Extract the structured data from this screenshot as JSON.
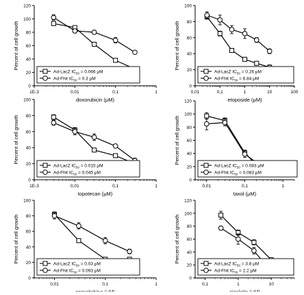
{
  "chart_data": [
    {
      "type": "line",
      "xscale": "log",
      "xlabel": "doxorubicin (μM)",
      "ylabel": "Percent of cell growth",
      "xlim": [
        0.001,
        1
      ],
      "ylim": [
        0,
        120
      ],
      "xticks": [
        0.001,
        0.01,
        0.1,
        1
      ],
      "xtick_labels": [
        "1E-3",
        "0,01",
        "0,1",
        "1"
      ],
      "yticks": [
        0,
        20,
        40,
        60,
        80,
        100,
        120
      ],
      "ytick_labels": [
        "0",
        "20",
        "40",
        "60",
        "80",
        "100",
        "120"
      ],
      "legend_position": "bottom-left",
      "series": [
        {
          "name": "Ad-LacZ IC50 = 0.066 μM",
          "label_main": "Ad-LacZ IC",
          "label_sub": "50",
          "label_rest": " = 0.066 μM",
          "marker": "square",
          "x": [
            0.003,
            0.01,
            0.03,
            0.1,
            0.3
          ],
          "y": [
            93,
            87,
            62,
            38,
            25
          ],
          "err": [
            2,
            2,
            2,
            2,
            2
          ]
        },
        {
          "name": "Ad-Fhit IC50 = 0.3 μM",
          "label_main": "Ad-Fhit  IC",
          "label_sub": "50",
          "label_rest": " = 0.3 μM",
          "marker": "circle",
          "x": [
            0.003,
            0.01,
            0.03,
            0.1,
            0.3
          ],
          "y": [
            102,
            82,
            80,
            68,
            50
          ],
          "err": [
            4,
            3,
            3,
            4,
            2
          ]
        }
      ]
    },
    {
      "type": "line",
      "xscale": "log",
      "xlabel": "etoposide (μM)",
      "ylabel": "Percent of cell growth",
      "xlim": [
        0.01,
        100
      ],
      "ylim": [
        0,
        100
      ],
      "xticks": [
        0.01,
        0.1,
        1,
        10,
        100
      ],
      "xtick_labels": [
        "0,01",
        "0,1",
        "1",
        "10",
        "100"
      ],
      "yticks": [
        0,
        20,
        40,
        60,
        80,
        100
      ],
      "ytick_labels": [
        "0",
        "20",
        "40",
        "60",
        "80",
        "100"
      ],
      "legend_position": "bottom-left",
      "series": [
        {
          "name": "Ad-LacZ IC50 = 0.26 μM",
          "label_main": "Ad-LacZ IC",
          "label_sub": "50",
          "label_rest": " = 0.26 μM",
          "marker": "square",
          "x": [
            0.03,
            0.1,
            0.3,
            1,
            3,
            10
          ],
          "y": [
            86,
            65,
            44,
            33,
            28,
            23
          ],
          "err": [
            3,
            3,
            2,
            2,
            2,
            3
          ]
        },
        {
          "name": "Ad-Fhit IC50 = 6.84 μM",
          "label_main": "Ad-Fhit  IC",
          "label_sub": "50",
          "label_rest": " = 6.84 μM",
          "marker": "circle",
          "x": [
            0.03,
            0.1,
            0.3,
            1,
            3,
            10
          ],
          "y": [
            88,
            82,
            70,
            65,
            57,
            43
          ],
          "err": [
            4,
            6,
            5,
            6,
            3,
            3
          ]
        }
      ]
    },
    {
      "type": "line",
      "xscale": "log",
      "xlabel": "topotecan (μM)",
      "ylabel": "Percent of cell growth",
      "xlim": [
        0.001,
        1
      ],
      "ylim": [
        0,
        100
      ],
      "xticks": [
        0.001,
        0.01,
        0.1,
        1
      ],
      "xtick_labels": [
        "1E-3",
        "0,01",
        "0,1",
        "1"
      ],
      "yticks": [
        0,
        20,
        40,
        60,
        80,
        100
      ],
      "ytick_labels": [
        "0",
        "20",
        "40",
        "60",
        "80",
        "100"
      ],
      "legend_position": "bottom-left",
      "series": [
        {
          "name": "Ad-LacZ IC50 = 0.015 μM",
          "label_main": "Ad-LacZ IC",
          "label_sub": "50",
          "label_rest": " = 0.015 μM",
          "marker": "square",
          "x": [
            0.003,
            0.01,
            0.03,
            0.1,
            0.3
          ],
          "y": [
            78,
            62,
            37,
            30,
            20
          ],
          "err": [
            3,
            3,
            2,
            2,
            2
          ]
        },
        {
          "name": "Ad-Fhit IC50 = 0.045 μM",
          "label_main": "Ad-Fhit  IC",
          "label_sub": "50",
          "label_rest": " = 0.045 μM",
          "marker": "circle",
          "x": [
            0.003,
            0.01,
            0.03,
            0.1,
            0.3
          ],
          "y": [
            71,
            60,
            53,
            42,
            24
          ],
          "err": [
            3,
            4,
            4,
            2,
            3
          ]
        }
      ]
    },
    {
      "type": "line",
      "xscale": "log",
      "xlabel": "taxol (μM)",
      "ylabel": "Percent of cell growth",
      "xlim": [
        0.005,
        2
      ],
      "ylim": [
        0,
        120
      ],
      "xticks": [
        0.01,
        0.1,
        1
      ],
      "xtick_labels": [
        "0,01",
        "0,1",
        "1"
      ],
      "yticks": [
        0,
        20,
        40,
        60,
        80,
        100,
        120
      ],
      "ytick_labels": [
        "0",
        "20",
        "40",
        "60",
        "80",
        "100",
        "120"
      ],
      "legend_position": "bottom-left",
      "series": [
        {
          "name": "Ad-LacZ IC50 = 0.083 μM",
          "label_main": "Ad-LacZ IC",
          "label_sub": "50",
          "label_rest": " = 0.083 μM",
          "marker": "square",
          "x": [
            0.01,
            0.03,
            0.1,
            0.3,
            1
          ],
          "y": [
            97,
            90,
            41,
            12,
            9
          ],
          "err": [
            5,
            4,
            4,
            2,
            2
          ]
        },
        {
          "name": "Ad-Fhit IC50 = 0.083 μM",
          "label_main": "Ad-Fhit  IC",
          "label_sub": "50",
          "label_rest": " = 0.083 μM",
          "marker": "circle",
          "x": [
            0.01,
            0.03,
            0.1,
            0.3,
            1
          ],
          "y": [
            85,
            87,
            39,
            19,
            15
          ],
          "err": [
            9,
            5,
            5,
            3,
            2
          ]
        }
      ]
    },
    {
      "type": "line",
      "xscale": "log",
      "xlabel": "gemcitabine (μM)",
      "ylabel": "Percent of cell growth",
      "xlim": [
        0.004,
        1
      ],
      "ylim": [
        0,
        100
      ],
      "xticks": [
        0.01,
        0.1,
        1
      ],
      "xtick_labels": [
        "0,01",
        "0,1",
        "1"
      ],
      "yticks": [
        0,
        20,
        40,
        60,
        80,
        100
      ],
      "ytick_labels": [
        "0",
        "20",
        "40",
        "60",
        "80",
        "100"
      ],
      "legend_position": "bottom-left",
      "series": [
        {
          "name": "Ad-LacZ IC50 = 0.03 μM",
          "label_main": "Ad-LacZ  IC",
          "label_sub": "50",
          "label_rest": " = 0.03 μM",
          "marker": "square",
          "x": [
            0.01,
            0.03,
            0.1,
            0.3
          ],
          "y": [
            82,
            48,
            24,
            24
          ],
          "err": [
            3,
            2,
            2,
            2
          ]
        },
        {
          "name": "Ad-Fhit IC50 = 0.093 μM",
          "label_main": "Ad-Fhit    IC",
          "label_sub": "50",
          "label_rest": " = 0.093 μM",
          "marker": "circle",
          "x": [
            0.01,
            0.03,
            0.1,
            0.3
          ],
          "y": [
            80,
            67,
            48,
            34
          ],
          "err": [
            4,
            4,
            4,
            3
          ]
        }
      ]
    },
    {
      "type": "line",
      "xscale": "log",
      "xlabel": "cisplatin (μM)",
      "ylabel": "Percent of cell growth",
      "xlim": [
        0.05,
        50
      ],
      "ylim": [
        0,
        120
      ],
      "xticks": [
        0.1,
        1,
        10
      ],
      "xtick_labels": [
        "0,1",
        "1",
        "10"
      ],
      "yticks": [
        0,
        20,
        40,
        60,
        80,
        100,
        120
      ],
      "ytick_labels": [
        "0",
        "20",
        "40",
        "60",
        "80",
        "100",
        "120"
      ],
      "legend_position": "bottom-left",
      "series": [
        {
          "name": "Ad-LacZ IC50 = 3.8 μM",
          "label_main": "Ad-LacZ    IC",
          "label_sub": "50",
          "label_rest": " = 3.8 μM",
          "marker": "square",
          "x": [
            0.3,
            1,
            3,
            10
          ],
          "y": [
            97,
            70,
            55,
            28
          ],
          "err": [
            6,
            4,
            4,
            2
          ]
        },
        {
          "name": "Ad-Fhit IC50 = 2.2 μM",
          "label_main": "Ad-Fhit      IC",
          "label_sub": "50",
          "label_rest": " = 2.2 μM",
          "marker": "circle",
          "x": [
            0.3,
            1,
            3,
            10
          ],
          "y": [
            77,
            60,
            42,
            9
          ],
          "err": [
            3,
            8,
            5,
            2
          ]
        }
      ]
    }
  ]
}
